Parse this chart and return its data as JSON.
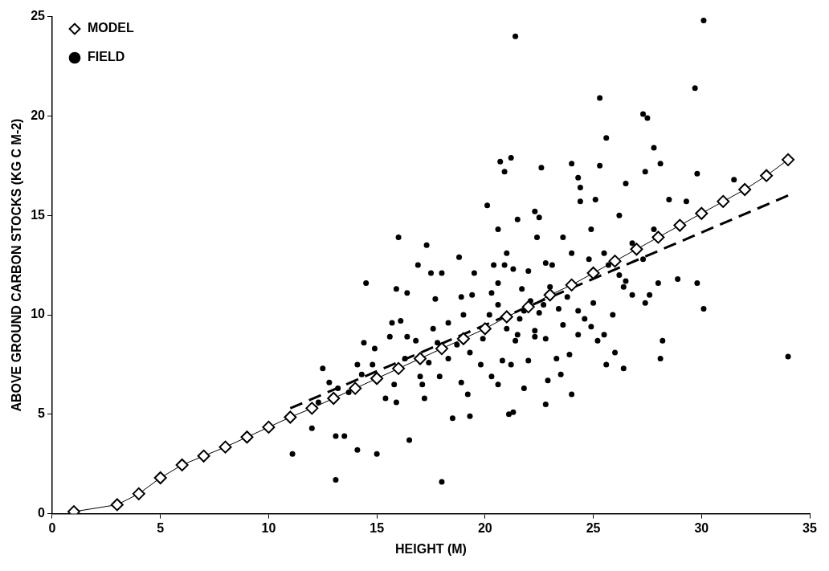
{
  "chart_data": {
    "type": "scatter",
    "xlabel": "HEIGHT (M)",
    "ylabel": "ABOVE GROUND CARBON STOCKS (KG C M-2)",
    "xlim": [
      0,
      35
    ],
    "xticks": [
      0,
      5,
      10,
      15,
      20,
      25,
      30,
      35
    ],
    "ylim": [
      0,
      25
    ],
    "yticks": [
      0,
      5,
      10,
      15,
      20,
      25
    ],
    "grid": false,
    "legend": "top left",
    "series": [
      {
        "name": "MODEL",
        "type": "line",
        "marker": "diamond",
        "color": "#000000",
        "x": [
          1,
          3,
          4,
          5,
          6,
          7,
          8,
          9,
          10,
          11,
          12,
          13,
          14,
          15,
          16,
          17,
          18,
          19,
          20,
          21,
          22,
          23,
          24,
          25,
          26,
          27,
          28,
          29,
          30,
          31,
          32,
          33,
          34
        ],
        "values": [
          0.1,
          0.45,
          1.0,
          1.8,
          2.45,
          2.9,
          3.35,
          3.85,
          4.35,
          4.85,
          5.3,
          5.8,
          6.3,
          6.8,
          7.3,
          7.8,
          8.3,
          8.8,
          9.3,
          9.9,
          10.4,
          11.0,
          11.5,
          12.1,
          12.7,
          13.3,
          13.9,
          14.5,
          15.1,
          15.7,
          16.3,
          17.0,
          17.8
        ]
      },
      {
        "name": "FIELD",
        "type": "scatter",
        "marker": "circle",
        "color": "#000000",
        "x": [
          21.4,
          30.1,
          29.7,
          25.3,
          27.3,
          27.5,
          25.6,
          27.8,
          28.1,
          27.4,
          29.8,
          31.5,
          21.2,
          20.7,
          20.9,
          22.6,
          24.0,
          25.3,
          24.3,
          24.4,
          25.1,
          26.5,
          28.5,
          29.3,
          26.2,
          24.4,
          20.1,
          16.0,
          17.3,
          14.5,
          20.6,
          22.3,
          22.5,
          21.5,
          26.8,
          27.8,
          28.9,
          29.8,
          30.1,
          34.0,
          28.1,
          28.2,
          28.0,
          27.6,
          27.4,
          26.4,
          25.9,
          25.5,
          25.2,
          26.8,
          26.5,
          24.8,
          24.0,
          23.1,
          22.8,
          22.0,
          21.3,
          20.4,
          20.9,
          19.5,
          18.8,
          18.0,
          17.5,
          16.9,
          17.7,
          18.9,
          19.4,
          20.6,
          20.6,
          21.7,
          22.1,
          22.7,
          23.4,
          23.8,
          24.3,
          24.6,
          25.0,
          24.3,
          23.9,
          23.3,
          22.8,
          22.3,
          21.6,
          21.4,
          21.0,
          21.2,
          20.8,
          20.3,
          19.8,
          19.3,
          18.7,
          18.3,
          17.8,
          17.4,
          17.0,
          17.1,
          16.3,
          16.4,
          16.1,
          15.7,
          15.6,
          14.9,
          14.4,
          14.8,
          14.3,
          13.7,
          13.2,
          12.5,
          12.8,
          12.3,
          12.0,
          11.1,
          13.1,
          13.5,
          14.1,
          15.0,
          13.1,
          18.0,
          16.5,
          17.2,
          15.9,
          15.4,
          18.5,
          19.3,
          18.9,
          19.2,
          20.6,
          21.1,
          21.3,
          22.8,
          22.0,
          23.5,
          24.0,
          25.6,
          26.4,
          26.0,
          22.5,
          21.8,
          23.0,
          25.7,
          20.2,
          19.9,
          18.3,
          17.6,
          16.8,
          15.9,
          16.4,
          14.1,
          15.8,
          17.9,
          21.0,
          23.6,
          24.9,
          25.5,
          26.2,
          27.3,
          22.4,
          21.8,
          22.9,
          24.9,
          20.3,
          19.0,
          23.6,
          22.3,
          21.5
        ],
        "values": [
          24.0,
          24.8,
          21.4,
          20.9,
          20.1,
          19.9,
          18.9,
          18.4,
          17.6,
          17.2,
          17.1,
          16.8,
          17.9,
          17.7,
          17.2,
          17.4,
          17.6,
          17.5,
          16.9,
          16.4,
          15.8,
          16.6,
          15.8,
          15.7,
          15.0,
          15.7,
          15.5,
          13.9,
          13.5,
          11.6,
          14.3,
          15.2,
          14.9,
          14.8,
          13.6,
          14.3,
          11.8,
          11.6,
          10.3,
          7.9,
          7.8,
          8.7,
          11.6,
          11.0,
          10.6,
          11.4,
          10.0,
          9.0,
          8.7,
          11.0,
          11.7,
          12.8,
          13.1,
          12.5,
          12.6,
          12.2,
          12.3,
          12.5,
          12.5,
          12.1,
          12.9,
          12.1,
          12.1,
          12.5,
          10.8,
          10.9,
          11.0,
          10.5,
          11.6,
          11.3,
          10.7,
          10.5,
          10.3,
          10.9,
          10.2,
          9.8,
          10.6,
          9.0,
          8.0,
          7.8,
          8.8,
          8.9,
          9.8,
          8.7,
          9.3,
          7.5,
          7.7,
          6.9,
          7.5,
          8.1,
          8.5,
          7.8,
          8.6,
          7.6,
          6.9,
          6.5,
          7.8,
          8.9,
          9.7,
          9.6,
          8.9,
          8.3,
          8.6,
          7.5,
          7.0,
          6.1,
          6.3,
          7.3,
          6.6,
          5.6,
          4.3,
          3.0,
          3.9,
          3.9,
          3.2,
          3.0,
          1.7,
          1.6,
          3.7,
          5.8,
          5.6,
          5.8,
          4.8,
          4.9,
          6.6,
          6.0,
          6.5,
          5.0,
          5.1,
          5.5,
          7.7,
          7.0,
          6.0,
          7.5,
          7.3,
          8.1,
          10.1,
          10.2,
          11.4,
          12.5,
          10.0,
          8.8,
          9.6,
          9.3,
          8.7,
          11.3,
          11.1,
          7.5,
          6.5,
          6.9,
          13.1,
          13.9,
          14.3,
          13.1,
          12.0,
          12.8,
          13.9,
          6.3,
          6.7,
          9.4,
          11.1,
          10.0,
          9.5,
          9.2,
          9.0
        ]
      },
      {
        "type": "line",
        "marker": "none",
        "line_style": "dashed",
        "color": "#000000",
        "x": [
          11,
          34
        ],
        "values": [
          5.3,
          16.0
        ]
      }
    ]
  }
}
